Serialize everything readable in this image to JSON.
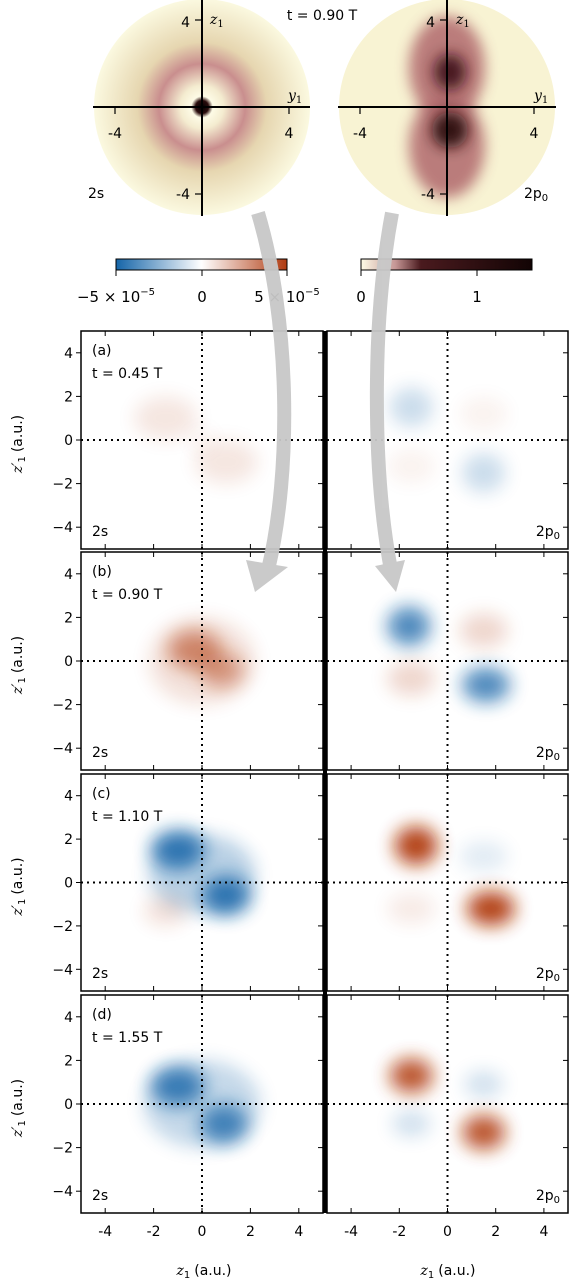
{
  "figure": {
    "top_time_label": "t = 0.90 T",
    "insets": [
      {
        "state": "2s",
        "axis_h": "y",
        "axis_h_sub": "1",
        "axis_v": "z",
        "axis_v_sub": "1",
        "ticks_h": [
          "-4",
          "4"
        ],
        "ticks_v": [
          "4",
          "-4"
        ]
      },
      {
        "state": "2p",
        "state_sub": "0",
        "axis_h": "y",
        "axis_h_sub": "1",
        "axis_v": "z",
        "axis_v_sub": "1",
        "ticks_h": [
          "-4",
          "4"
        ],
        "ticks_v": [
          "4",
          "-4"
        ]
      }
    ],
    "colorbars": [
      {
        "name": "difference",
        "colors": [
          "#1565a8",
          "#ffffff",
          "#b03a10"
        ],
        "tick_labels": [
          "−5 × 10",
          "0",
          "5 × 10"
        ],
        "exponent": "−5"
      },
      {
        "name": "density",
        "colors": [
          "#fdfbe6",
          "#8a3a45",
          "#1a0505"
        ],
        "tick_labels": [
          "0",
          "1"
        ]
      }
    ],
    "colors": {
      "blue": "#1565a8",
      "red": "#b03a10",
      "arrow": "#cccccc"
    },
    "x_axis_label": "z",
    "x_axis_label_sub": "1",
    "x_axis_unit": "(a.u.)",
    "y_axis_label": "z",
    "y_axis_label_prime": "′",
    "y_axis_label_sub": "1",
    "y_axis_unit": "(a.u.)",
    "x_ticks": [
      "-4",
      "-2",
      "0",
      "2",
      "4"
    ],
    "y_ticks": [
      "4",
      "2",
      "0",
      "−2",
      "−4"
    ]
  },
  "chart_data": [
    {
      "type": "heatmap",
      "panel": "(a)",
      "time": "t = 0.45 T",
      "state": "2s",
      "xlim": [
        -5,
        5
      ],
      "ylim": [
        -5,
        5
      ],
      "blobs": [
        {
          "x": -1.5,
          "y": 1.0,
          "sx": 1.3,
          "sy": 1.0,
          "value": 0.12
        },
        {
          "x": 1.0,
          "y": -1.0,
          "sx": 1.3,
          "sy": 1.0,
          "value": 0.12
        },
        {
          "x": 0,
          "y": 0,
          "sx": 0.6,
          "sy": 0.6,
          "value": 0.04
        }
      ]
    },
    {
      "type": "heatmap",
      "panel": "(a)",
      "time": "t = 0.45 T",
      "state": "2p",
      "state_sub": "0",
      "xlim": [
        -5,
        5
      ],
      "ylim": [
        -5,
        5
      ],
      "blobs": [
        {
          "x": -1.5,
          "y": 1.5,
          "sx": 0.9,
          "sy": 0.9,
          "value": -0.22
        },
        {
          "x": 1.5,
          "y": -1.5,
          "sx": 0.9,
          "sy": 0.9,
          "value": -0.22
        },
        {
          "x": -1.5,
          "y": -1.2,
          "sx": 1.0,
          "sy": 0.8,
          "value": 0.06
        },
        {
          "x": 1.5,
          "y": 1.2,
          "sx": 1.0,
          "sy": 0.8,
          "value": 0.06
        }
      ]
    },
    {
      "type": "heatmap",
      "panel": "(b)",
      "time": "t = 0.90 T",
      "state": "2s",
      "xlim": [
        -5,
        5
      ],
      "ylim": [
        -5,
        5
      ],
      "blobs": [
        {
          "x": -0.3,
          "y": 0.5,
          "sx": 1.1,
          "sy": 0.9,
          "value": 0.55
        },
        {
          "x": 0.8,
          "y": -0.4,
          "sx": 0.9,
          "sy": 0.8,
          "value": 0.45
        },
        {
          "x": 0,
          "y": 0,
          "sx": 2.2,
          "sy": 2.0,
          "value": 0.15
        }
      ]
    },
    {
      "type": "heatmap",
      "panel": "(b)",
      "time": "t = 0.90 T",
      "state": "2p",
      "state_sub": "0",
      "xlim": [
        -5,
        5
      ],
      "ylim": [
        -5,
        5
      ],
      "blobs": [
        {
          "x": -1.6,
          "y": 1.6,
          "sx": 0.9,
          "sy": 0.9,
          "value": -0.75
        },
        {
          "x": 1.6,
          "y": -1.1,
          "sx": 1.0,
          "sy": 0.8,
          "value": -0.75
        },
        {
          "x": -1.5,
          "y": -0.8,
          "sx": 1.0,
          "sy": 0.8,
          "value": 0.2
        },
        {
          "x": 1.5,
          "y": 1.4,
          "sx": 1.0,
          "sy": 0.8,
          "value": 0.2
        }
      ]
    },
    {
      "type": "heatmap",
      "panel": "(c)",
      "time": "t = 1.10 T",
      "state": "2s",
      "xlim": [
        -5,
        5
      ],
      "ylim": [
        -5,
        5
      ],
      "blobs": [
        {
          "x": -1.0,
          "y": 1.5,
          "sx": 1.1,
          "sy": 0.9,
          "value": -0.85
        },
        {
          "x": 1.0,
          "y": -0.6,
          "sx": 1.0,
          "sy": 0.9,
          "value": -0.85
        },
        {
          "x": 0,
          "y": 0.4,
          "sx": 2.2,
          "sy": 1.8,
          "value": -0.3
        },
        {
          "x": -1.5,
          "y": -1.3,
          "sx": 0.9,
          "sy": 0.7,
          "value": 0.15
        }
      ]
    },
    {
      "type": "heatmap",
      "panel": "(c)",
      "time": "t = 1.10 T",
      "state": "2p",
      "state_sub": "0",
      "xlim": [
        -5,
        5
      ],
      "ylim": [
        -5,
        5
      ],
      "blobs": [
        {
          "x": -1.3,
          "y": 1.7,
          "sx": 0.9,
          "sy": 0.9,
          "value": 0.95
        },
        {
          "x": 1.8,
          "y": -1.2,
          "sx": 1.0,
          "sy": 0.8,
          "value": 0.95
        },
        {
          "x": 1.5,
          "y": 1.2,
          "sx": 1.0,
          "sy": 0.7,
          "value": -0.12
        },
        {
          "x": -1.5,
          "y": -1.2,
          "sx": 1.0,
          "sy": 0.7,
          "value": 0.1
        }
      ]
    },
    {
      "type": "heatmap",
      "panel": "(d)",
      "time": "t = 1.55 T",
      "state": "2s",
      "xlim": [
        -5,
        5
      ],
      "ylim": [
        -5,
        5
      ],
      "blobs": [
        {
          "x": -1.0,
          "y": 0.8,
          "sx": 1.1,
          "sy": 0.9,
          "value": -0.8
        },
        {
          "x": 0.9,
          "y": -0.9,
          "sx": 1.0,
          "sy": 0.9,
          "value": -0.75
        },
        {
          "x": 0,
          "y": 0,
          "sx": 2.4,
          "sy": 2.0,
          "value": -0.25
        }
      ]
    },
    {
      "type": "heatmap",
      "panel": "(d)",
      "time": "t = 1.55 T",
      "state": "2p",
      "state_sub": "0",
      "xlim": [
        -5,
        5
      ],
      "ylim": [
        -5,
        5
      ],
      "blobs": [
        {
          "x": -1.5,
          "y": 1.3,
          "sx": 0.9,
          "sy": 0.8,
          "value": 0.85
        },
        {
          "x": 1.5,
          "y": -1.3,
          "sx": 0.9,
          "sy": 0.8,
          "value": 0.85
        },
        {
          "x": 1.5,
          "y": 0.9,
          "sx": 0.8,
          "sy": 0.6,
          "value": -0.2
        },
        {
          "x": -1.5,
          "y": -0.9,
          "sx": 0.8,
          "sy": 0.6,
          "value": -0.2
        }
      ]
    }
  ]
}
